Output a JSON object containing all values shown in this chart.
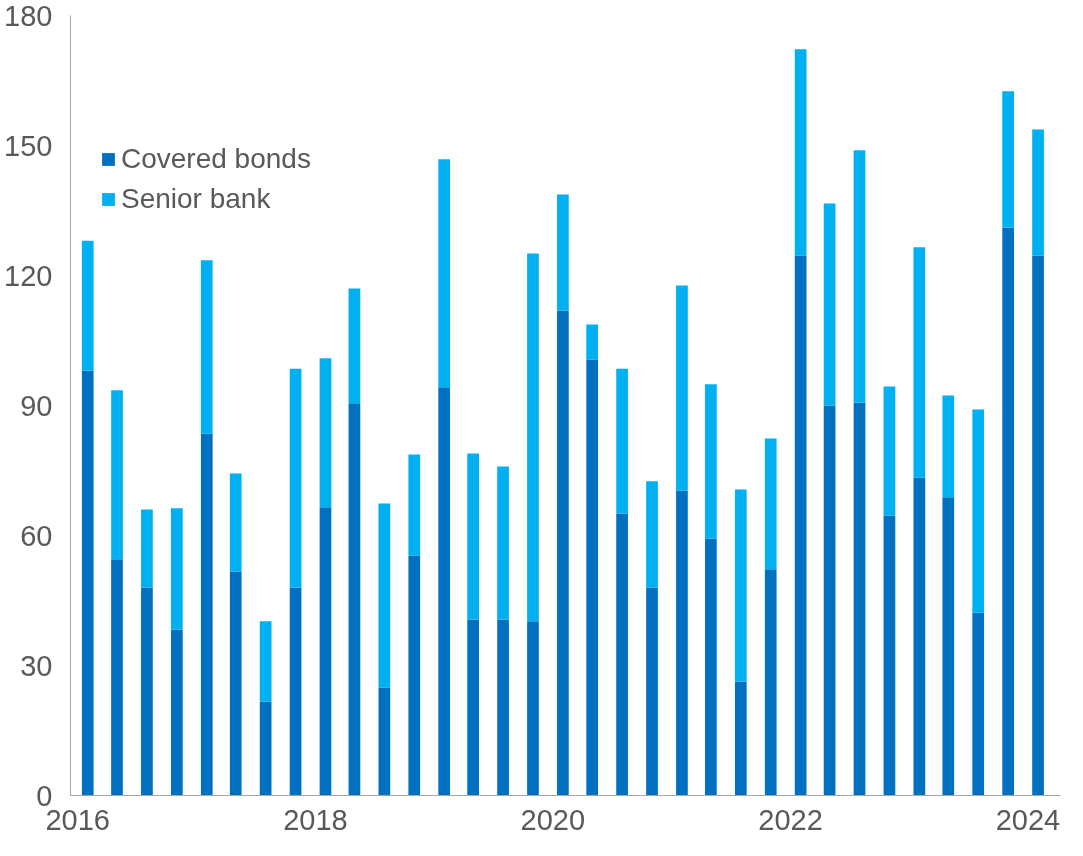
{
  "chart_data": {
    "type": "bar",
    "stacked": true,
    "x": [
      "2016-02",
      "2016-05",
      "2016-08",
      "2016-11",
      "2017-02",
      "2017-05",
      "2017-08",
      "2017-11",
      "2018-02",
      "2018-05",
      "2018-08",
      "2018-11",
      "2019-02",
      "2019-05",
      "2019-08",
      "2019-11",
      "2020-02",
      "2020-05",
      "2020-08",
      "2020-11",
      "2021-02",
      "2021-05",
      "2021-08",
      "2021-11",
      "2022-02",
      "2022-05",
      "2022-08",
      "2022-11",
      "2023-02",
      "2023-05",
      "2023-08",
      "2023-11",
      "2024-02"
    ],
    "series": [
      {
        "name": "Covered bonds",
        "color": "#0070c0",
        "values": [
          98,
          54.5,
          48,
          38.3,
          83.5,
          51.7,
          21.7,
          48,
          66.5,
          90.5,
          24.9,
          55.4,
          94.2,
          40.6,
          40.6,
          40.2,
          111.9,
          100.6,
          65.1,
          48,
          70.4,
          59.3,
          26.3,
          52.2,
          124.6,
          90,
          90.7,
          64.6,
          73.4,
          68.8,
          42.2,
          131.1,
          124.6
        ]
      },
      {
        "name": "Senior bank",
        "color": "#00b0f0",
        "values": [
          30,
          39,
          18,
          28,
          40,
          22.6,
          18.5,
          50.5,
          34.4,
          26.5,
          42.5,
          23.3,
          52.6,
          38.3,
          35.3,
          84.9,
          26.8,
          8.1,
          33.4,
          24.5,
          47.3,
          35.6,
          44.3,
          30.2,
          47.6,
          46.6,
          58.2,
          29.8,
          53.1,
          23.5,
          46.9,
          31.4,
          29.1
        ]
      }
    ],
    "xlim": [
      "2015-12-10",
      "2024-04-10"
    ],
    "xticks": [
      {
        "value": "2016-01-01",
        "label": "2016"
      },
      {
        "value": "2018-01-01",
        "label": "2018"
      },
      {
        "value": "2020-01-01",
        "label": "2020"
      },
      {
        "value": "2022-01-01",
        "label": "2022"
      },
      {
        "value": "2024-01-01",
        "label": "2024"
      }
    ],
    "ylim": [
      0,
      180
    ],
    "yticks": [
      0,
      30,
      60,
      90,
      120,
      150,
      180
    ],
    "grid": false,
    "legend": "top left"
  }
}
